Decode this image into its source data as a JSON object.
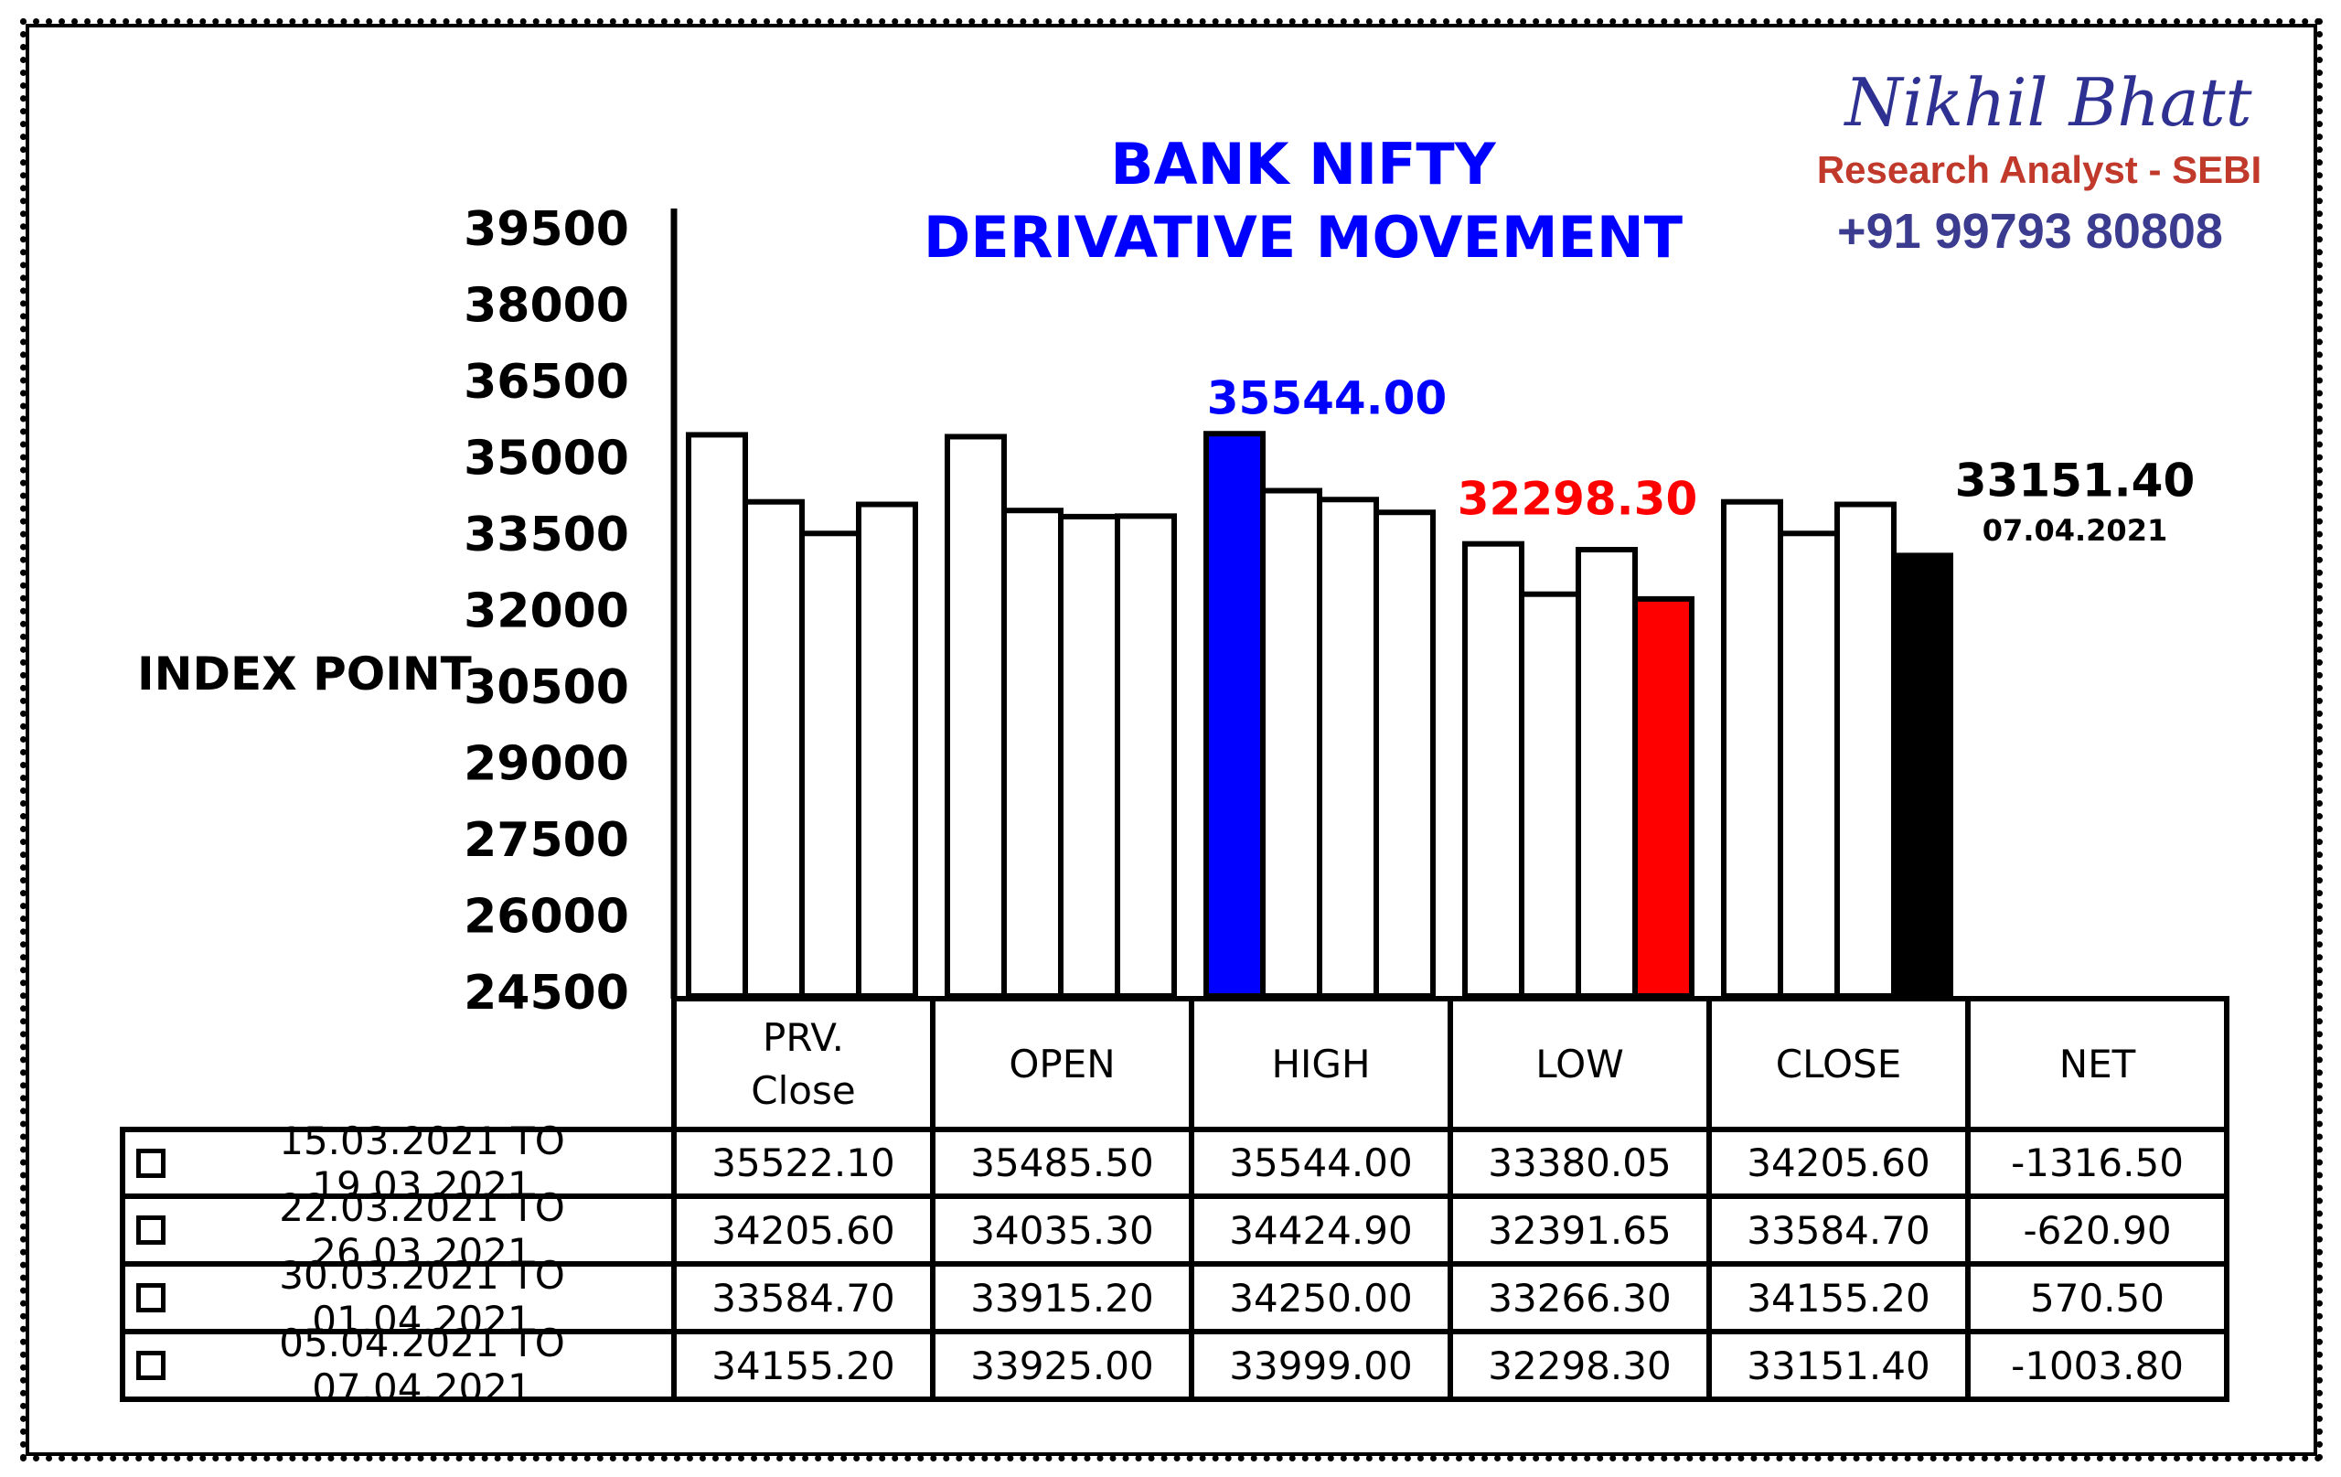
{
  "chart_data": {
    "type": "bar",
    "title": "BANK NIFTY DERIVATIVE MOVEMENT",
    "ylabel": "INDEX POINT",
    "brand": {
      "name": "Nikhil Bhatt",
      "role": "Research Analyst - SEBI",
      "phone": "+91 99793 80808"
    },
    "categories": [
      "PRV. Close",
      "OPEN",
      "HIGH",
      "LOW",
      "CLOSE",
      "NET"
    ],
    "series": [
      {
        "name": "15.03.2021 TO 19.03.2021",
        "values": [
          35522.1,
          35485.5,
          35544,
          33380.05,
          34205.6,
          -1316.5
        ],
        "value_labels": [
          "35522.10",
          "35485.50",
          "35544.00",
          "33380.05",
          "34205.60",
          "-1316.50"
        ],
        "colors": [
          "#ffffff",
          "#ffffff",
          "#0000ff",
          "#ffffff",
          "#ffffff",
          "#ffffff"
        ]
      },
      {
        "name": "22.03.2021 TO 26.03.2021",
        "values": [
          34205.6,
          34035.3,
          34424.9,
          32391.65,
          33584.7,
          -620.9
        ],
        "value_labels": [
          "34205.60",
          "34035.30",
          "34424.90",
          "32391.65",
          "33584.70",
          "-620.90"
        ],
        "colors": [
          "#ffffff",
          "#ffffff",
          "#ffffff",
          "#ffffff",
          "#ffffff",
          "#ffffff"
        ]
      },
      {
        "name": "30.03.2021 TO 01.04.2021",
        "values": [
          33584.7,
          33915.2,
          34250,
          33266.3,
          34155.2,
          570.5
        ],
        "value_labels": [
          "33584.70",
          "33915.20",
          "34250.00",
          "33266.30",
          "34155.20",
          "570.50"
        ],
        "colors": [
          "#ffffff",
          "#ffffff",
          "#ffffff",
          "#ffffff",
          "#ffffff",
          "#ffffff"
        ]
      },
      {
        "name": "05.04.2021 TO 07.04.2021",
        "values": [
          34155.2,
          33925,
          33999,
          32298.3,
          33151.4,
          -1003.8
        ],
        "value_labels": [
          "34155.20",
          "33925.00",
          "33999.00",
          "32298.30",
          "33151.40",
          "-1003.80"
        ],
        "colors": [
          "#ffffff",
          "#ffffff",
          "#ffffff",
          "#ff0000",
          "#000000",
          "#ffffff"
        ]
      }
    ],
    "ylim": [
      24500,
      39500
    ],
    "yticks": [
      24500,
      26000,
      27500,
      29000,
      30500,
      32000,
      33500,
      35000,
      36500,
      38000,
      39500
    ],
    "annotations": [
      {
        "text": "35544.00",
        "color": "#0000ff"
      },
      {
        "text": "32298.30",
        "color": "#ff0000"
      },
      {
        "text": "33151.40",
        "color": "#000000"
      },
      {
        "text": "07.04.2021",
        "color": "#000000"
      }
    ]
  }
}
